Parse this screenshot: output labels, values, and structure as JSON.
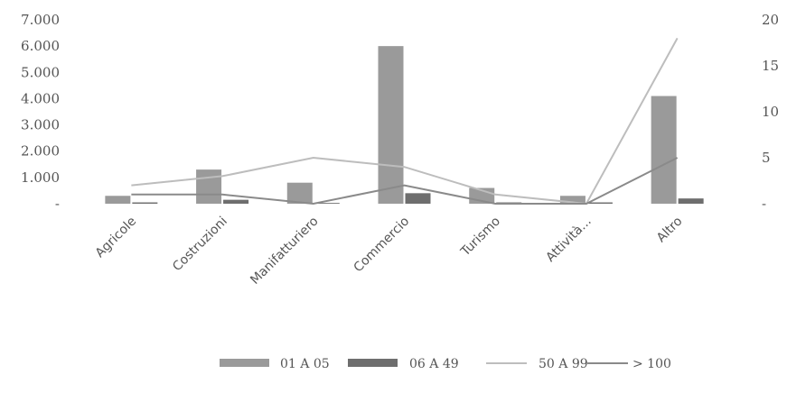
{
  "chart_data": {
    "type": "bar",
    "title": "",
    "categories": [
      "Agricole",
      "Costruzioni",
      "Manifatturiero",
      "Commercio",
      "Turismo",
      "Attività...",
      "Altro"
    ],
    "y_left": {
      "ylim": [
        0,
        7000
      ],
      "ticks": [
        "-",
        "1.000",
        "2.000",
        "3.000",
        "4.000",
        "5.000",
        "6.000",
        "7.000"
      ],
      "tick_values": [
        0,
        1000,
        2000,
        3000,
        4000,
        5000,
        6000,
        7000
      ]
    },
    "y_right": {
      "ylim": [
        0,
        20
      ],
      "ticks": [
        "-",
        "5",
        "10",
        "15",
        "20"
      ],
      "tick_values": [
        0,
        5,
        10,
        15,
        20
      ]
    },
    "series": [
      {
        "name": "01 A 05",
        "kind": "bar",
        "axis": "left",
        "color": "#9a9a9a",
        "values": [
          300,
          1300,
          800,
          6000,
          600,
          300,
          4100
        ]
      },
      {
        "name": "06 A 49",
        "kind": "bar",
        "axis": "left",
        "color": "#6e6e6e",
        "values": [
          50,
          150,
          30,
          400,
          50,
          50,
          200
        ]
      },
      {
        "name": "50 A 99",
        "kind": "line",
        "axis": "right",
        "color": "#bdbdbd",
        "values": [
          2,
          3,
          5,
          4,
          1,
          0,
          18
        ]
      },
      {
        "name": "> 100",
        "kind": "line",
        "axis": "right",
        "color": "#8a8a8a",
        "values": [
          1,
          1,
          0,
          2,
          0,
          0,
          5
        ]
      }
    ],
    "grid": false,
    "legend_position": "bottom"
  }
}
